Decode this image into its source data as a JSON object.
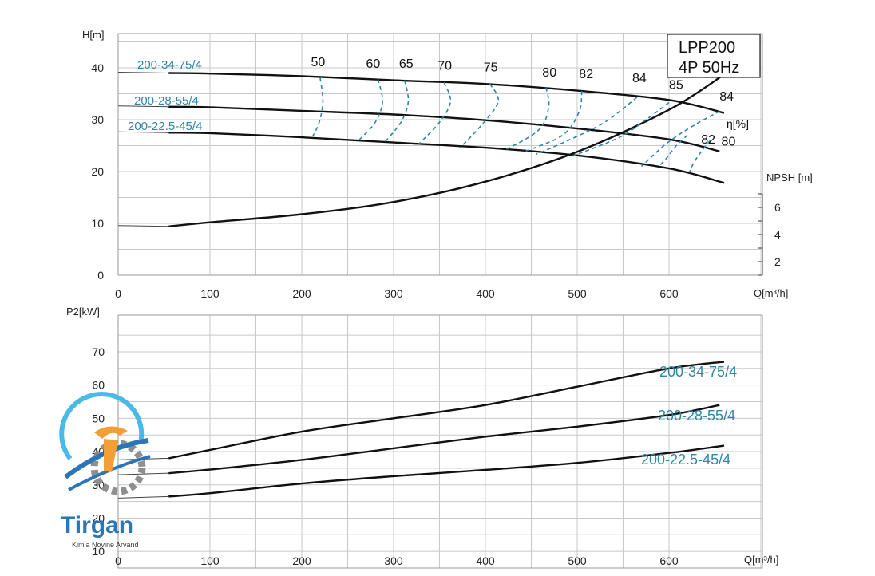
{
  "chart_data": [
    {
      "type": "line",
      "title": "LPP200",
      "subtitle": "4P  50Hz",
      "xlabel": "Q[m³/h]",
      "ylabel": "H[m]",
      "xlim": [
        0,
        700
      ],
      "ylim": [
        0,
        45
      ],
      "x_ticks": [
        0,
        100,
        200,
        300,
        400,
        500,
        600
      ],
      "y_ticks": [
        0,
        10,
        20,
        30,
        40
      ],
      "grid": true,
      "series": [
        {
          "name": "200-34-75/4",
          "x": [
            55,
            100,
            200,
            300,
            400,
            500,
            600,
            660
          ],
          "y": [
            39,
            38.9,
            38.4,
            37.6,
            36.9,
            35.6,
            33.8,
            31.3
          ]
        },
        {
          "name": "200-28-55/4",
          "x": [
            55,
            100,
            200,
            300,
            400,
            500,
            600,
            655
          ],
          "y": [
            32.5,
            32.4,
            31.7,
            31,
            29.9,
            28.3,
            26.2,
            23.9
          ]
        },
        {
          "name": "200-22.5-45/4",
          "x": [
            55,
            100,
            200,
            300,
            400,
            500,
            600,
            660
          ],
          "y": [
            27.5,
            27.4,
            26.6,
            25.6,
            24.6,
            23.1,
            20.6,
            17.8
          ]
        }
      ],
      "efficiency_curves": {
        "label": "η[%]",
        "labels": [
          "50",
          "60",
          "65",
          "70",
          "75",
          "80",
          "82",
          "84",
          "85",
          "84",
          "82",
          "80"
        ],
        "points": [
          [
            [
              220,
              38.1
            ],
            [
              223,
              33.5
            ],
            [
              219,
              29.5
            ],
            [
              212,
              26.8
            ]
          ],
          [
            [
              283,
              37.8
            ],
            [
              288,
              33.5
            ],
            [
              280,
              29.5
            ],
            [
              262,
              26
            ]
          ],
          [
            [
              312,
              37.6
            ],
            [
              316,
              33.5
            ],
            [
              308,
              29.5
            ],
            [
              290,
              25.6
            ]
          ],
          [
            [
              355,
              37.2
            ],
            [
              362,
              33.5
            ],
            [
              350,
              29.5
            ],
            [
              327,
              25.2
            ]
          ],
          [
            [
              405,
              36.9
            ],
            [
              414,
              33.5
            ],
            [
              396,
              29
            ],
            [
              372,
              24.5
            ]
          ],
          [
            [
              466,
              36.2
            ],
            [
              469,
              32.5
            ],
            [
              458,
              28
            ],
            [
              420,
              24
            ]
          ],
          [
            [
              505,
              35.5
            ],
            [
              502,
              31.5
            ],
            [
              484,
              27
            ],
            [
              442,
              23.8
            ]
          ],
          [
            [
              565,
              34.3
            ],
            [
              530,
              29.5
            ],
            [
              490,
              26
            ],
            [
              455,
              23.3
            ]
          ],
          [
            [
              600,
              33.3
            ],
            [
              575,
              30
            ],
            [
              545,
              26.5
            ],
            [
              495,
              23
            ]
          ],
          [
            [
              655,
              31.6
            ],
            [
              628,
              29
            ],
            [
              598,
              25.5
            ],
            [
              570,
              21
            ]
          ],
          [
            [
              620,
              27
            ],
            [
              608,
              25
            ],
            [
              597,
              22.5
            ],
            [
              590,
              21.2
            ]
          ],
          [
            [
              645,
              26
            ],
            [
              638,
              24.5
            ],
            [
              628,
              22
            ],
            [
              622,
              19.8
            ]
          ]
        ],
        "label_positions": [
          [
            210,
            40.3
          ],
          [
            270,
            40.0
          ],
          [
            306,
            40.0
          ],
          [
            348,
            39.6
          ],
          [
            398,
            39.3
          ],
          [
            462,
            38.3
          ],
          [
            502,
            38.0
          ],
          [
            560,
            37.2
          ],
          [
            600,
            35.9
          ],
          [
            655,
            33.7
          ],
          [
            635,
            25.4
          ],
          [
            657,
            25.0
          ]
        ]
      },
      "npsh": {
        "ylabel": "NPSH [m]",
        "axis_ticks": [
          2,
          4,
          6
        ],
        "axis_range": [
          1,
          7
        ],
        "x": [
          55,
          100,
          200,
          300,
          400,
          500,
          600,
          660
        ],
        "y": [
          4.6,
          4.9,
          5.5,
          6.4,
          7.9,
          10.1,
          13.2,
          15.8
        ]
      }
    },
    {
      "type": "line",
      "xlabel": "Q[m³/h]",
      "ylabel": "P2[kW]",
      "xlim": [
        0,
        700
      ],
      "ylim": [
        5,
        75
      ],
      "x_ticks": [
        0,
        100,
        200,
        300,
        400,
        500,
        600
      ],
      "y_ticks": [
        10,
        20,
        30,
        40,
        50,
        60,
        70
      ],
      "grid": true,
      "series": [
        {
          "name": "200-34-75/4",
          "x": [
            55,
            100,
            200,
            300,
            400,
            500,
            600,
            660
          ],
          "y": [
            38,
            40.5,
            46,
            50,
            54,
            59.5,
            65,
            67
          ]
        },
        {
          "name": "200-28-55/4",
          "x": [
            55,
            100,
            200,
            300,
            400,
            500,
            600,
            655
          ],
          "y": [
            33.5,
            34.6,
            37.5,
            41,
            44.5,
            47.5,
            51,
            54
          ]
        },
        {
          "name": "200-22.5-45/4",
          "x": [
            55,
            100,
            200,
            300,
            400,
            500,
            600,
            660
          ],
          "y": [
            26.5,
            27.5,
            30.4,
            32.6,
            34.5,
            36.6,
            39.6,
            41.8
          ]
        }
      ]
    }
  ],
  "watermark": {
    "brand": "Tirgan",
    "tagline": "Kimia Novine Arvand"
  }
}
